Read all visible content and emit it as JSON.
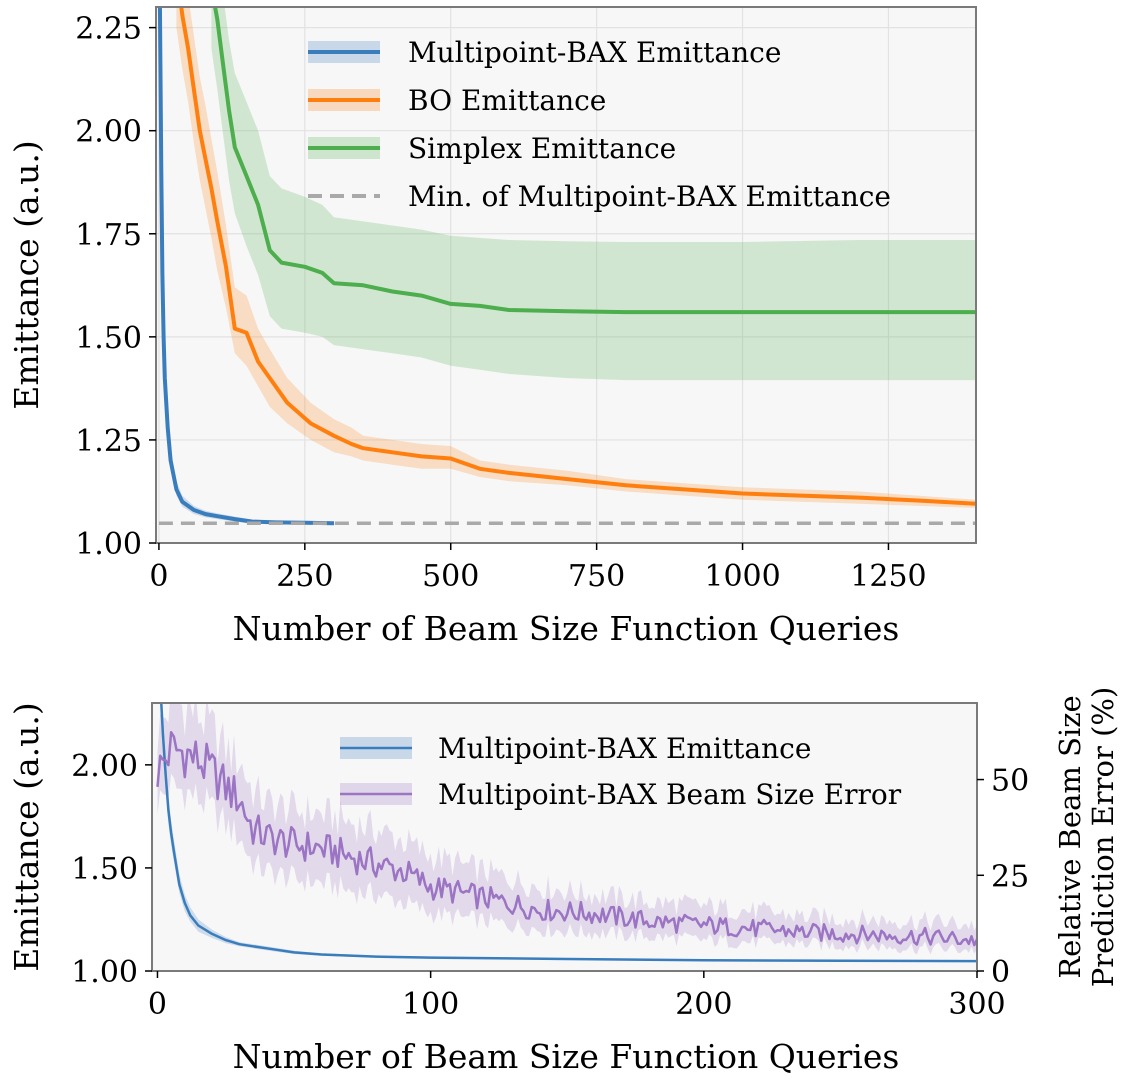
{
  "colors": {
    "bax": "#3a7dbd",
    "bo": "#ff7f0e",
    "simplex": "#4cae4c",
    "minline": "#a9a9a9",
    "error": "#9c74c4",
    "plot_bg": "#f7f7f7",
    "grid": "#e2e2e2"
  },
  "chart_data": [
    {
      "type": "line",
      "xlabel": "Number of Beam Size Function Queries",
      "ylabel": "Emittance (a.u.)",
      "xlim": [
        -5,
        1400
      ],
      "ylim": [
        1.0,
        2.3
      ],
      "xticks": [
        0,
        250,
        500,
        750,
        1000,
        1250
      ],
      "xtick_labels": [
        "0",
        "250",
        "500",
        "750",
        "1000",
        "1250"
      ],
      "yticks": [
        1.0,
        1.25,
        1.5,
        1.75,
        2.0,
        2.25
      ],
      "ytick_labels": [
        "1.00",
        "1.25",
        "1.50",
        "1.75",
        "2.00",
        "2.25"
      ],
      "grid": true,
      "legend_position": "top-right",
      "legend": [
        "Multipoint-BAX Emittance",
        "BO Emittance",
        "Simplex Emittance",
        "Min. of Multipoint-BAX Emittance"
      ],
      "series": [
        {
          "name": "Multipoint-BAX Emittance",
          "color": "#3a7dbd",
          "x": [
            0,
            2,
            4,
            6,
            8,
            10,
            15,
            20,
            30,
            40,
            60,
            80,
            100,
            130,
            160,
            200,
            250,
            300
          ],
          "y": [
            2.6,
            2.25,
            1.9,
            1.65,
            1.5,
            1.4,
            1.28,
            1.2,
            1.13,
            1.1,
            1.08,
            1.07,
            1.065,
            1.058,
            1.052,
            1.05,
            1.049,
            1.048
          ],
          "lower": [
            2.5,
            2.15,
            1.82,
            1.6,
            1.46,
            1.37,
            1.25,
            1.18,
            1.115,
            1.088,
            1.07,
            1.062,
            1.058,
            1.052,
            1.047,
            1.046,
            1.046,
            1.045
          ],
          "upper": [
            2.7,
            2.35,
            1.98,
            1.72,
            1.55,
            1.44,
            1.31,
            1.23,
            1.15,
            1.115,
            1.09,
            1.078,
            1.072,
            1.064,
            1.057,
            1.054,
            1.052,
            1.051
          ]
        },
        {
          "name": "BO Emittance",
          "color": "#ff7f0e",
          "x": [
            30,
            40,
            50,
            60,
            70,
            80,
            90,
            100,
            115,
            130,
            150,
            170,
            190,
            220,
            260,
            300,
            330,
            350,
            400,
            450,
            500,
            550,
            600,
            700,
            800,
            900,
            1000,
            1100,
            1200,
            1300,
            1400
          ],
          "y": [
            2.4,
            2.28,
            2.2,
            2.1,
            2.0,
            1.93,
            1.86,
            1.78,
            1.67,
            1.52,
            1.51,
            1.44,
            1.4,
            1.34,
            1.29,
            1.26,
            1.24,
            1.23,
            1.22,
            1.21,
            1.205,
            1.18,
            1.17,
            1.155,
            1.14,
            1.13,
            1.12,
            1.115,
            1.11,
            1.103,
            1.095
          ],
          "lower": [
            2.25,
            2.15,
            2.07,
            1.97,
            1.88,
            1.81,
            1.74,
            1.66,
            1.57,
            1.46,
            1.43,
            1.38,
            1.33,
            1.29,
            1.25,
            1.22,
            1.21,
            1.2,
            1.19,
            1.18,
            1.18,
            1.16,
            1.15,
            1.14,
            1.125,
            1.115,
            1.105,
            1.1,
            1.095,
            1.09,
            1.085
          ],
          "upper": [
            2.55,
            2.42,
            2.33,
            2.23,
            2.13,
            2.06,
            1.98,
            1.9,
            1.77,
            1.62,
            1.6,
            1.52,
            1.47,
            1.4,
            1.34,
            1.3,
            1.28,
            1.26,
            1.25,
            1.24,
            1.235,
            1.2,
            1.19,
            1.175,
            1.155,
            1.145,
            1.135,
            1.13,
            1.125,
            1.115,
            1.105
          ]
        },
        {
          "name": "Simplex Emittance",
          "color": "#4cae4c",
          "x": [
            90,
            100,
            110,
            120,
            130,
            150,
            170,
            190,
            210,
            250,
            280,
            300,
            350,
            400,
            450,
            500,
            550,
            600,
            700,
            800,
            900,
            1000,
            1200,
            1400
          ],
          "y": [
            2.35,
            2.27,
            2.16,
            2.05,
            1.96,
            1.89,
            1.82,
            1.71,
            1.68,
            1.67,
            1.655,
            1.63,
            1.625,
            1.61,
            1.6,
            1.58,
            1.575,
            1.565,
            1.562,
            1.56,
            1.56,
            1.56,
            1.56,
            1.56
          ],
          "lower": [
            2.2,
            2.1,
            1.99,
            1.88,
            1.8,
            1.72,
            1.65,
            1.55,
            1.52,
            1.51,
            1.5,
            1.48,
            1.47,
            1.46,
            1.45,
            1.43,
            1.42,
            1.41,
            1.4,
            1.395,
            1.395,
            1.395,
            1.395,
            1.395
          ],
          "upper": [
            2.5,
            2.42,
            2.33,
            2.22,
            2.14,
            2.07,
            2.0,
            1.89,
            1.86,
            1.84,
            1.82,
            1.79,
            1.78,
            1.77,
            1.76,
            1.745,
            1.74,
            1.735,
            1.732,
            1.73,
            1.73,
            1.73,
            1.735,
            1.735
          ]
        },
        {
          "name": "Min. of Multipoint-BAX Emittance",
          "color": "#a9a9a9",
          "style": "dashed",
          "x": [
            0,
            1400
          ],
          "y": [
            1.048,
            1.048
          ]
        }
      ]
    },
    {
      "type": "line",
      "xlabel": "Number of Beam Size Function Queries",
      "ylabel": "Emittance (a.u.)",
      "ylabel_right_line1": "Relative Beam Size",
      "ylabel_right_line2": "Prediction Error (%)",
      "xlim": [
        -2,
        300
      ],
      "ylim": [
        1.0,
        2.3
      ],
      "ylim_right": [
        0,
        70
      ],
      "xticks": [
        0,
        100,
        200,
        300
      ],
      "xtick_labels": [
        "0",
        "100",
        "200",
        "300"
      ],
      "yticks": [
        1.0,
        1.5,
        2.0
      ],
      "ytick_labels": [
        "1.00",
        "1.50",
        "2.00"
      ],
      "yticks_right": [
        0,
        25,
        50
      ],
      "ytick_labels_right": [
        "0",
        "25",
        "50"
      ],
      "legend_position": "top-right",
      "legend": [
        "Multipoint-BAX Emittance",
        "Multipoint-BAX Beam Size Error"
      ],
      "series": [
        {
          "name": "Multipoint-BAX Emittance",
          "axis": "left",
          "color": "#3a7dbd",
          "x": [
            0,
            1,
            2,
            3,
            4,
            5,
            6,
            8,
            10,
            12,
            15,
            20,
            25,
            30,
            35,
            40,
            50,
            60,
            80,
            100,
            150,
            200,
            250,
            300
          ],
          "y": [
            2.6,
            2.4,
            2.15,
            1.95,
            1.78,
            1.67,
            1.58,
            1.42,
            1.33,
            1.27,
            1.22,
            1.18,
            1.15,
            1.13,
            1.12,
            1.11,
            1.09,
            1.08,
            1.07,
            1.065,
            1.058,
            1.052,
            1.05,
            1.048
          ],
          "lower": [
            2.5,
            2.3,
            2.05,
            1.87,
            1.71,
            1.61,
            1.53,
            1.38,
            1.29,
            1.24,
            1.19,
            1.16,
            1.135,
            1.12,
            1.11,
            1.1,
            1.082,
            1.074,
            1.065,
            1.06,
            1.054,
            1.049,
            1.047,
            1.045
          ],
          "upper": [
            2.7,
            2.5,
            2.25,
            2.03,
            1.85,
            1.73,
            1.64,
            1.47,
            1.37,
            1.31,
            1.25,
            1.2,
            1.165,
            1.14,
            1.13,
            1.12,
            1.098,
            1.086,
            1.075,
            1.07,
            1.062,
            1.055,
            1.053,
            1.051
          ]
        },
        {
          "name": "Multipoint-BAX Beam Size Error",
          "axis": "right",
          "color": "#9c74c4",
          "x": [
            0,
            5,
            10,
            15,
            20,
            25,
            30,
            35,
            40,
            50,
            60,
            70,
            80,
            90,
            100,
            120,
            140,
            160,
            180,
            200,
            220,
            240,
            260,
            280,
            300
          ],
          "y": [
            52,
            58,
            57,
            55,
            52,
            48,
            45,
            37,
            35,
            33,
            32,
            30,
            28,
            26,
            22,
            19,
            16,
            15,
            13,
            12,
            11,
            10,
            9.5,
            9,
            8
          ],
          "lower": [
            44,
            48,
            47,
            45,
            42,
            38,
            35,
            28,
            26,
            24,
            23,
            21,
            20,
            18,
            15,
            13,
            11,
            10,
            9,
            8,
            7.5,
            7,
            6.5,
            6,
            5.5
          ],
          "upper": [
            62,
            70,
            69,
            67,
            63,
            58,
            55,
            47,
            44,
            42,
            41,
            39,
            37,
            34,
            30,
            26,
            22,
            20,
            18,
            17,
            15.5,
            14,
            13.5,
            13,
            12
          ]
        }
      ]
    }
  ]
}
